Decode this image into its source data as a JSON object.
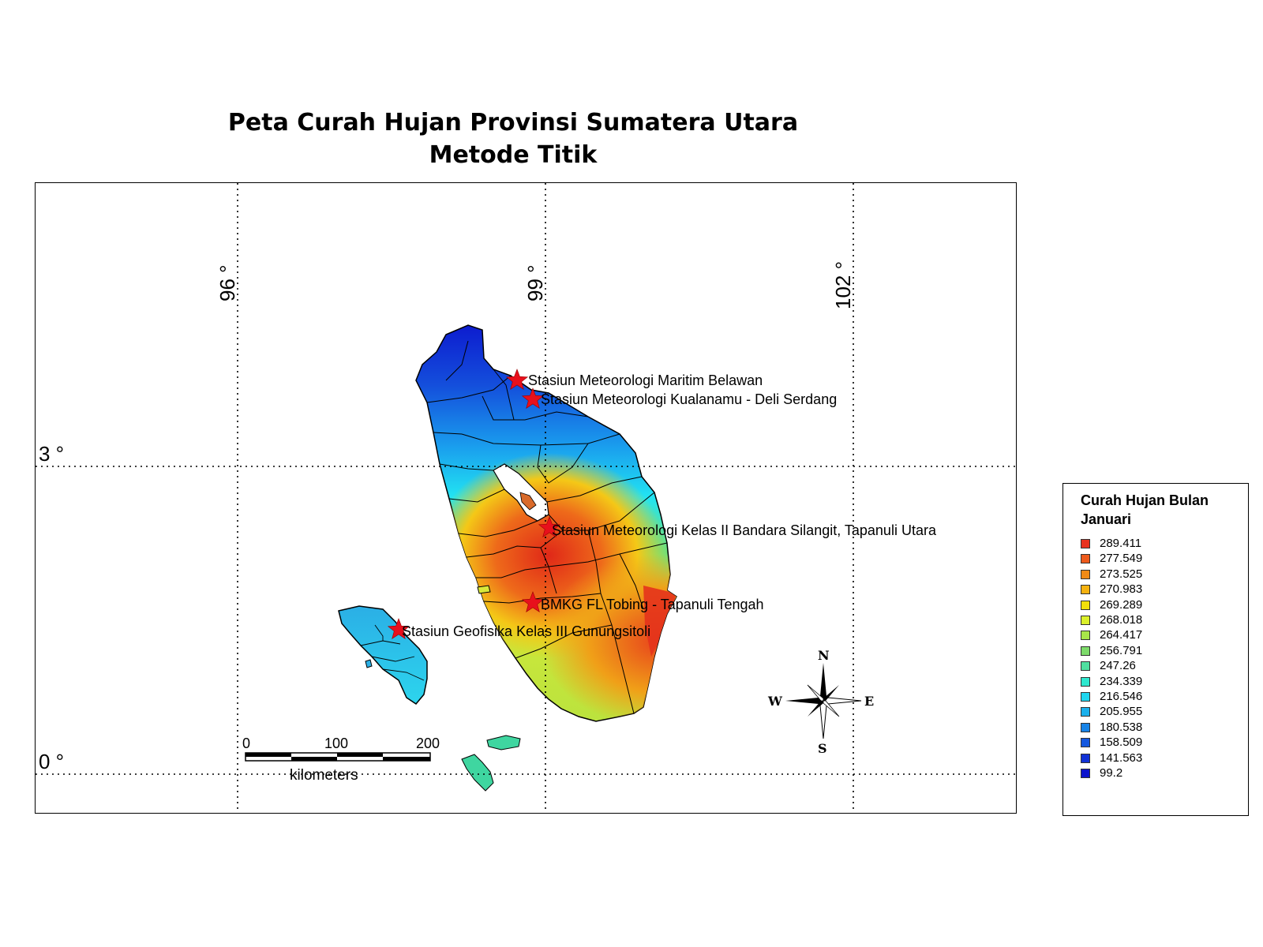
{
  "title": {
    "line1": "Peta Curah Hujan Provinsi Sumatera Utara",
    "line2": "Metode Titik"
  },
  "graticule": {
    "longitudes": [
      "96 °",
      "99 °",
      "102 °"
    ],
    "latitudes": [
      "3 °",
      "0 °"
    ]
  },
  "stations": [
    {
      "name": "Stasiun Meteorologi Maritim Belawan"
    },
    {
      "name": "Stasiun Meteorologi Kualanamu - Deli Serdang"
    },
    {
      "name": "Stasiun Meteorologi Kelas II Bandara Silangit, Tapanuli Utara"
    },
    {
      "name": "BMKG FL Tobing - Tapanuli Tengah"
    },
    {
      "name": "Stasiun Geofisika Kelas III Gunungsitoli"
    }
  ],
  "scalebar": {
    "ticks": [
      "0",
      "100",
      "200"
    ],
    "unit": "kilometers"
  },
  "north_arrow": {
    "n": "N",
    "s": "S",
    "e": "E",
    "w": "W"
  },
  "legend": {
    "title": "Curah Hujan Bulan Januari",
    "items": [
      {
        "label": "289.411",
        "color": "#e8321f"
      },
      {
        "label": "277.549",
        "color": "#ed5a1c"
      },
      {
        "label": "273.525",
        "color": "#f08a17"
      },
      {
        "label": "270.983",
        "color": "#f5b20f"
      },
      {
        "label": "269.289",
        "color": "#f2e00c"
      },
      {
        "label": "268.018",
        "color": "#dbf02a"
      },
      {
        "label": "264.417",
        "color": "#a8e64a"
      },
      {
        "label": "256.791",
        "color": "#7ddb6a"
      },
      {
        "label": "247.26",
        "color": "#4fe0a0"
      },
      {
        "label": "234.339",
        "color": "#2ee8cf"
      },
      {
        "label": "216.546",
        "color": "#1fd6f0"
      },
      {
        "label": "205.955",
        "color": "#1ab0ec"
      },
      {
        "label": "180.538",
        "color": "#1783e6"
      },
      {
        "label": "158.509",
        "color": "#1458df"
      },
      {
        "label": "141.563",
        "color": "#1132d6"
      },
      {
        "label": "99.2",
        "color": "#0d14cc"
      }
    ]
  }
}
